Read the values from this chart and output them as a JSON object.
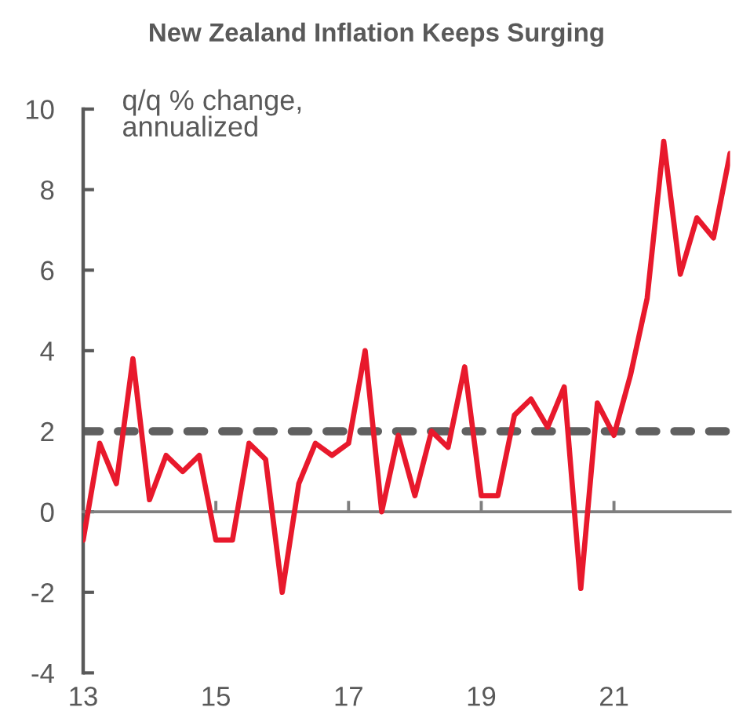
{
  "chart_data": {
    "type": "line",
    "title": "New Zealand Inflation Keeps Surging",
    "ylabel": "q/q % change,\nannualized",
    "x": [
      2013,
      2013.25,
      2013.5,
      2013.75,
      2014,
      2014.25,
      2014.5,
      2014.75,
      2015,
      2015.25,
      2015.5,
      2015.75,
      2016,
      2016.25,
      2016.5,
      2016.75,
      2017,
      2017.25,
      2017.5,
      2017.75,
      2018,
      2018.25,
      2018.5,
      2018.75,
      2019,
      2019.25,
      2019.5,
      2019.75,
      2020,
      2020.25,
      2020.5,
      2020.75,
      2021,
      2021.25,
      2021.5,
      2021.75,
      2022,
      2022.25,
      2022.5,
      2022.75
    ],
    "series": [
      {
        "color": "#e8192c",
        "values": [
          -0.7,
          1.7,
          0.7,
          3.8,
          0.3,
          1.4,
          1.0,
          1.4,
          -0.7,
          -0.7,
          1.7,
          1.3,
          -2.0,
          0.7,
          1.7,
          1.4,
          1.7,
          4.0,
          0.0,
          1.9,
          0.4,
          2.0,
          1.6,
          3.6,
          0.4,
          0.4,
          2.4,
          2.8,
          2.1,
          3.1,
          -1.9,
          2.7,
          1.9,
          3.4,
          5.3,
          9.2,
          5.9,
          7.3,
          6.8,
          8.9
        ]
      }
    ],
    "xlim": [
      2013,
      2022.75
    ],
    "xticks": [
      {
        "value": 2013,
        "label": "13"
      },
      {
        "value": 2015,
        "label": "15"
      },
      {
        "value": 2017,
        "label": "17"
      },
      {
        "value": 2019,
        "label": "19"
      },
      {
        "value": 2021,
        "label": "21"
      }
    ],
    "ylim": [
      -4,
      10
    ],
    "yticks": [
      -4,
      -2,
      0,
      2,
      4,
      6,
      8,
      10
    ],
    "ref_lines": [
      {
        "axis": "y",
        "value": 2,
        "color": "#606060",
        "line_style": "dashed"
      }
    ],
    "grid": false,
    "marker": "none",
    "line_style": "solid"
  }
}
